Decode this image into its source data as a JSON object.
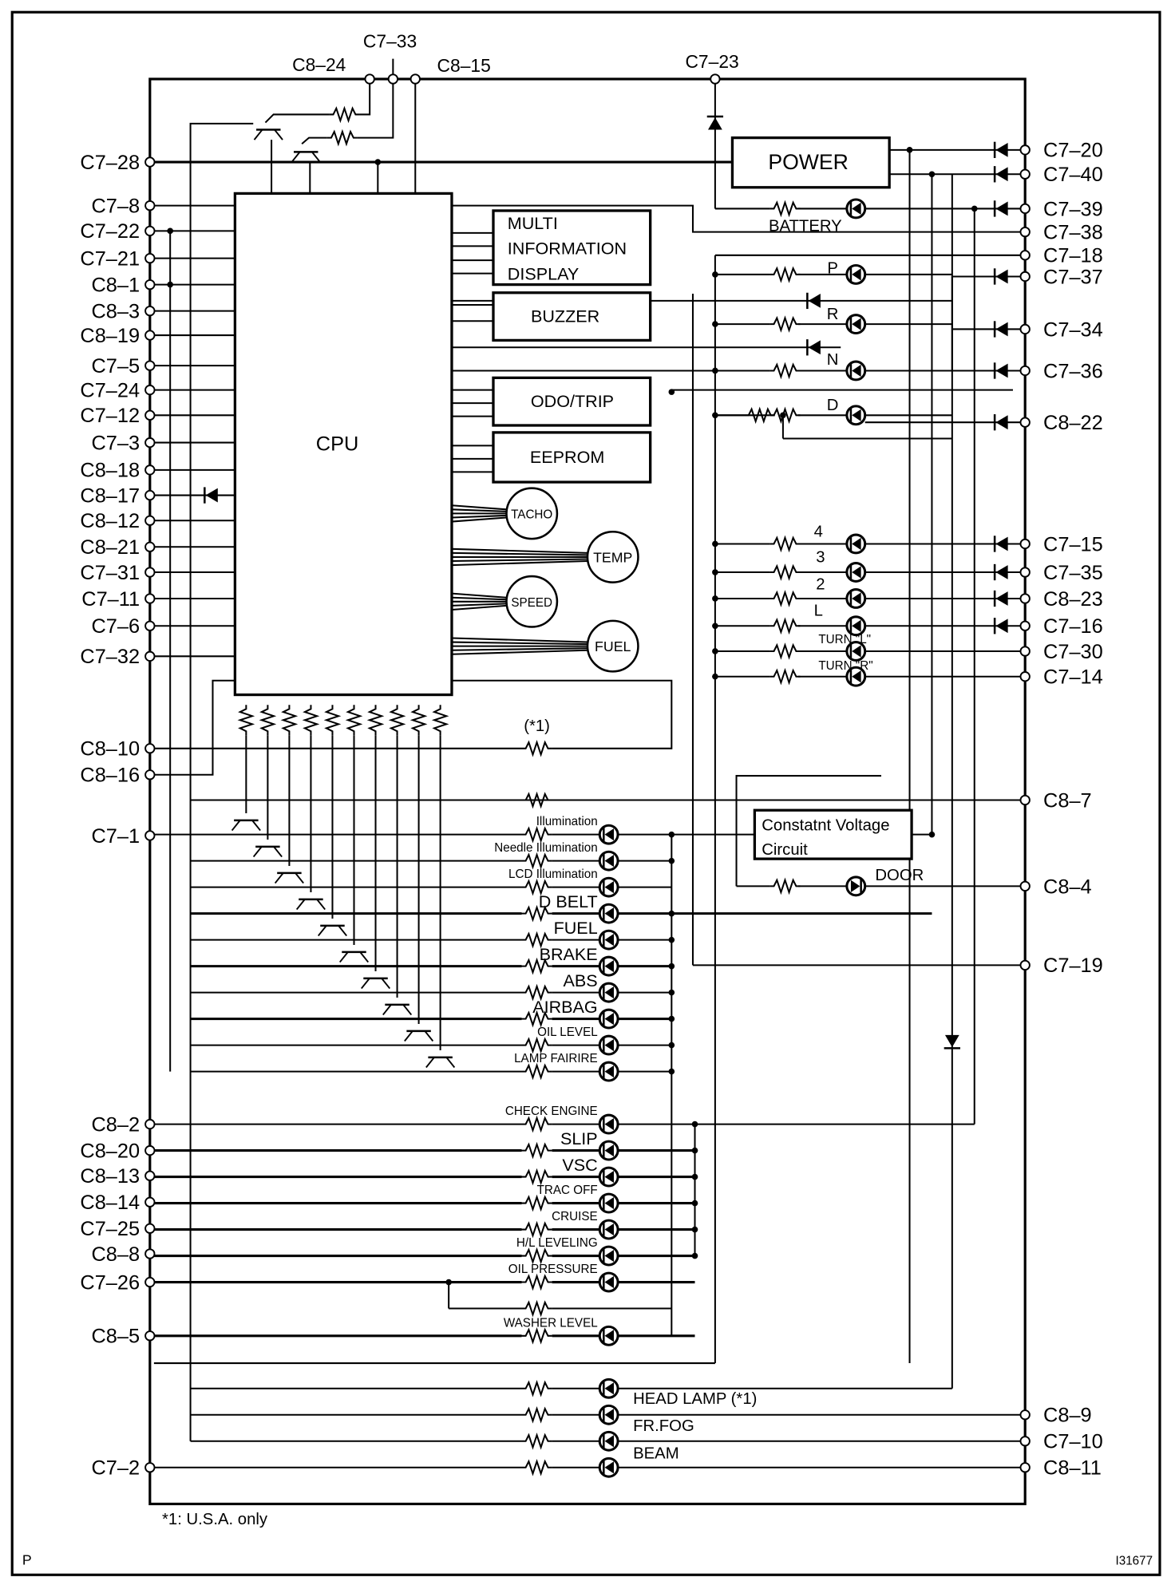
{
  "top_pins": [
    "C8–24",
    "C7–33",
    "C8–15",
    "C7–23"
  ],
  "left_pins": [
    "C7–28",
    "C7–8",
    "C7–22",
    "C7–21",
    "C8–1",
    "C8–3",
    "C8–19",
    "C7–5",
    "C7–24",
    "C7–12",
    "C7–3",
    "C8–18",
    "C8–17",
    "C8–12",
    "C8–21",
    "C7–31",
    "C7–11",
    "C7–6",
    "C7–32",
    "C8–10",
    "C8–16",
    "C7–1",
    "C8–2",
    "C8–20",
    "C8–13",
    "C8–14",
    "C7–25",
    "C8–8",
    "C7–26",
    "C8–5",
    "C7–2"
  ],
  "right_pins": [
    "C7–20",
    "C7–40",
    "C7–39",
    "C7–38",
    "C7–18",
    "C7–37",
    "C7–34",
    "C7–36",
    "C8–22",
    "C7–15",
    "C7–35",
    "C8–23",
    "C7–16",
    "C7–30",
    "C7–14",
    "C8–7",
    "C8–4",
    "C7–19",
    "C8–9",
    "C7–10",
    "C8–11"
  ],
  "blocks": {
    "cpu": "CPU",
    "power": "POWER",
    "multi_info": [
      "MULTI",
      "INFORMATION",
      "DISPLAY"
    ],
    "buzzer": "BUZZER",
    "odo_trip": "ODO/TRIP",
    "eeprom": "EEPROM",
    "constant_voltage": [
      "Constatnt Voltage",
      "Circuit"
    ]
  },
  "gauges": [
    "TACHO",
    "TEMP",
    "SPEED",
    "FUEL"
  ],
  "left_lamps": [
    "Illumination",
    "Needle Illumination",
    "LCD Illumination",
    "D BELT",
    "FUEL",
    "BRAKE",
    "ABS",
    "AIRBAG",
    "OIL LEVEL",
    "LAMP FAIRIRE",
    "CHECK ENGINE",
    "SLIP",
    "VSC",
    "TRAC OFF",
    "CRUISE",
    "H/L LEVELING",
    "OIL PRESSURE",
    "WASHER LEVEL"
  ],
  "bottom_lamps": [
    "HEAD LAMP (*1)",
    "FR.FOG",
    "BEAM"
  ],
  "right_lamps": [
    "BATTERY",
    "P",
    "R",
    "N",
    "D",
    "4",
    "3",
    "2",
    "L",
    "TURN \"L\"",
    "TURN \"R\"",
    "DOOR"
  ],
  "resistor_note": "(*1)",
  "footnote": "*1: U.S.A. only",
  "corner_left": "P",
  "figure_id": "I31677"
}
